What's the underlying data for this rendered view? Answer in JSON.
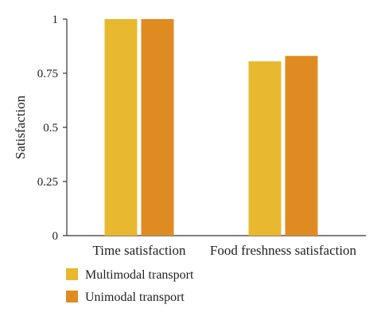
{
  "chart_data": {
    "type": "bar",
    "categories": [
      "Time satisfaction",
      "Food freshness satisfaction"
    ],
    "series": [
      {
        "name": "Multimodal transport",
        "values": [
          1.0,
          0.805
        ],
        "color": "#E8B92F"
      },
      {
        "name": "Unimodal transport",
        "values": [
          1.0,
          0.83
        ],
        "color": "#DE8C22"
      }
    ],
    "ylabel": "Satisfaction",
    "xlabel": "",
    "ylim": [
      0,
      1
    ],
    "yticks": [
      "0",
      "0.25",
      "0.5",
      "0.75",
      "1"
    ],
    "ytick_values": [
      0,
      0.25,
      0.5,
      0.75,
      1
    ],
    "grid": false,
    "legend_position": "bottom-left"
  }
}
